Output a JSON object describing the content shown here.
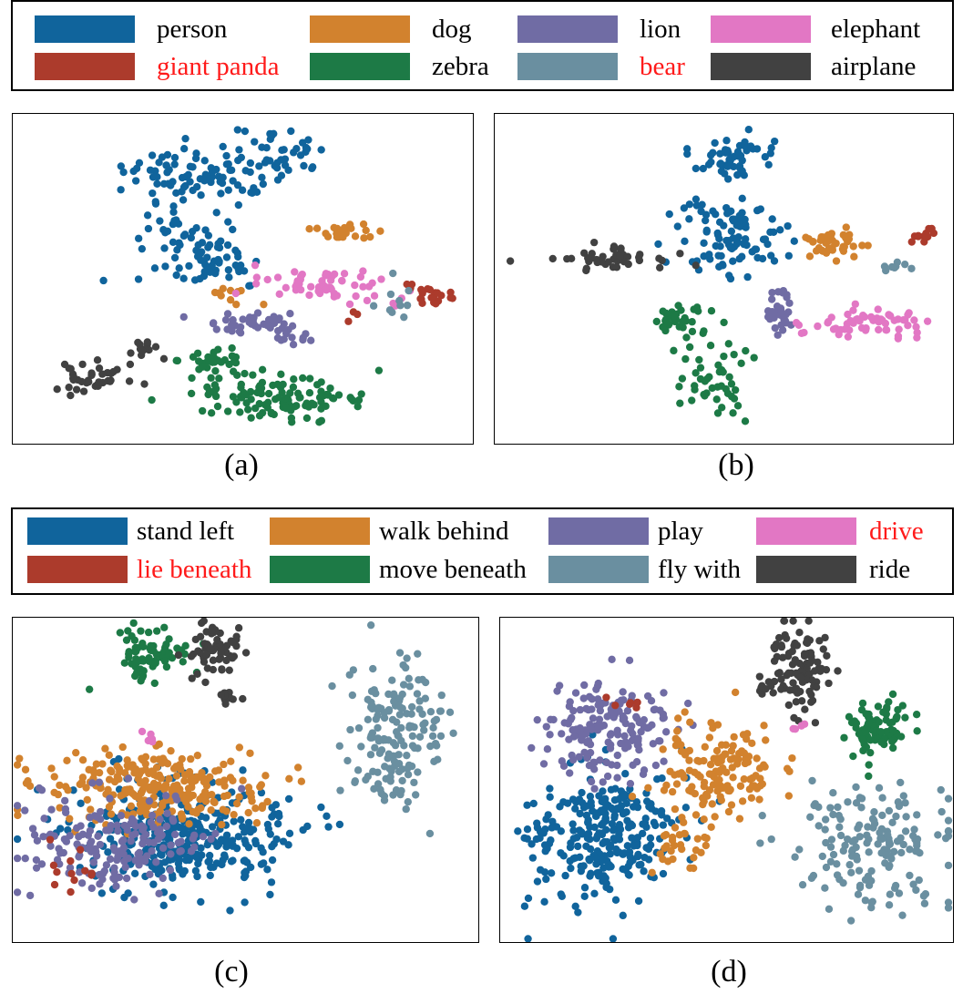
{
  "legends": [
    {
      "id": "legend-objects",
      "items": [
        {
          "label": "person",
          "color": "#10649c",
          "highlight": false
        },
        {
          "label": "giant panda",
          "color": "#ac3b2c",
          "highlight": true
        },
        {
          "label": "dog",
          "color": "#d2822e",
          "highlight": false
        },
        {
          "label": "zebra",
          "color": "#1d7a46",
          "highlight": false
        },
        {
          "label": "lion",
          "color": "#706ca4",
          "highlight": false
        },
        {
          "label": "bear",
          "color": "#6a8fa0",
          "highlight": true
        },
        {
          "label": "elephant",
          "color": "#e277c4",
          "highlight": false
        },
        {
          "label": "airplane",
          "color": "#414141",
          "highlight": false
        }
      ]
    },
    {
      "id": "legend-predicates",
      "items": [
        {
          "label": "stand left",
          "color": "#10649c",
          "highlight": false
        },
        {
          "label": "lie beneath",
          "color": "#ac3b2c",
          "highlight": true
        },
        {
          "label": "walk behind",
          "color": "#d2822e",
          "highlight": false
        },
        {
          "label": "move beneath",
          "color": "#1d7a46",
          "highlight": false
        },
        {
          "label": "play",
          "color": "#706ca4",
          "highlight": false
        },
        {
          "label": "fly with",
          "color": "#6a8fa0",
          "highlight": true
        },
        {
          "label": "drive",
          "color": "#e277c4",
          "highlight": true
        },
        {
          "label": "ride",
          "color": "#414141",
          "highlight": false
        }
      ]
    }
  ],
  "captions": {
    "a": "(a)",
    "b": "(b)",
    "c": "(c)",
    "d": "(d)"
  },
  "chart_data": [
    {
      "type": "scatter",
      "panel": "(a)",
      "legend": "legend-objects",
      "title": "",
      "xlabel": "",
      "ylabel": "",
      "axes_ticks": false,
      "grid": false,
      "xlim": [
        0,
        100
      ],
      "ylim": [
        0,
        100
      ],
      "clusters": [
        {
          "series": "person",
          "center": [
            40,
            18
          ],
          "spread": [
            10,
            5
          ],
          "n": 80
        },
        {
          "series": "person",
          "center": [
            58,
            12
          ],
          "spread": [
            6,
            6
          ],
          "n": 40
        },
        {
          "series": "person",
          "center": [
            42,
            45
          ],
          "spread": [
            8,
            6
          ],
          "n": 60
        },
        {
          "series": "person",
          "center": [
            36,
            34
          ],
          "spread": [
            6,
            4
          ],
          "n": 25
        },
        {
          "series": "dog",
          "center": [
            71,
            36
          ],
          "spread": [
            4,
            2
          ],
          "n": 25
        },
        {
          "series": "dog",
          "center": [
            48,
            55
          ],
          "spread": [
            4,
            2
          ],
          "n": 10
        },
        {
          "series": "zebra",
          "center": [
            58,
            86
          ],
          "spread": [
            12,
            4
          ],
          "n": 110
        },
        {
          "series": "zebra",
          "center": [
            44,
            75
          ],
          "spread": [
            5,
            3
          ],
          "n": 35
        },
        {
          "series": "lion",
          "center": [
            52,
            63
          ],
          "spread": [
            7,
            2
          ],
          "n": 40
        },
        {
          "series": "lion",
          "center": [
            60,
            67
          ],
          "spread": [
            4,
            1.5
          ],
          "n": 12
        },
        {
          "series": "elephant",
          "center": [
            69,
            52
          ],
          "spread": [
            9,
            3
          ],
          "n": 55
        },
        {
          "series": "elephant",
          "center": [
            84,
            58
          ],
          "spread": [
            1.5,
            1.5
          ],
          "n": 4
        },
        {
          "series": "giant panda",
          "center": [
            91,
            55
          ],
          "spread": [
            4,
            2
          ],
          "n": 22
        },
        {
          "series": "giant panda",
          "center": [
            74,
            62
          ],
          "spread": [
            1,
            1
          ],
          "n": 3
        },
        {
          "series": "bear",
          "center": [
            84,
            58
          ],
          "spread": [
            3,
            3
          ],
          "n": 10
        },
        {
          "series": "airplane",
          "center": [
            16,
            80
          ],
          "spread": [
            5,
            3
          ],
          "n": 40
        },
        {
          "series": "airplane",
          "center": [
            28,
            71
          ],
          "spread": [
            3,
            2
          ],
          "n": 12
        }
      ]
    },
    {
      "type": "scatter",
      "panel": "(b)",
      "legend": "legend-objects",
      "title": "",
      "xlabel": "",
      "ylabel": "",
      "axes_ticks": false,
      "grid": false,
      "xlim": [
        0,
        100
      ],
      "ylim": [
        0,
        100
      ],
      "clusters": [
        {
          "series": "person",
          "center": [
            52,
            12
          ],
          "spread": [
            6,
            5
          ],
          "n": 50
        },
        {
          "series": "person",
          "center": [
            52,
            38
          ],
          "spread": [
            7,
            8
          ],
          "n": 100
        },
        {
          "series": "dog",
          "center": [
            72,
            39
          ],
          "spread": [
            5,
            3
          ],
          "n": 40
        },
        {
          "series": "giant panda",
          "center": [
            93,
            37
          ],
          "spread": [
            2,
            1.5
          ],
          "n": 12
        },
        {
          "series": "bear",
          "center": [
            88,
            46
          ],
          "spread": [
            2,
            1
          ],
          "n": 8
        },
        {
          "series": "lion",
          "center": [
            62,
            60
          ],
          "spread": [
            1.5,
            5
          ],
          "n": 30
        },
        {
          "series": "elephant",
          "center": [
            82,
            63
          ],
          "spread": [
            9,
            3
          ],
          "n": 60
        },
        {
          "series": "zebra",
          "center": [
            40,
            62
          ],
          "spread": [
            4,
            3
          ],
          "n": 30
        },
        {
          "series": "zebra",
          "center": [
            48,
            80
          ],
          "spread": [
            5,
            8
          ],
          "n": 50
        },
        {
          "series": "airplane",
          "center": [
            25,
            44
          ],
          "spread": [
            9,
            2
          ],
          "n": 45
        }
      ]
    },
    {
      "type": "scatter",
      "panel": "(c)",
      "legend": "legend-predicates",
      "title": "",
      "xlabel": "",
      "ylabel": "",
      "axes_ticks": false,
      "grid": false,
      "xlim": [
        0,
        100
      ],
      "ylim": [
        0,
        100
      ],
      "clusters": [
        {
          "series": "stand left",
          "center": [
            37,
            67
          ],
          "spread": [
            14,
            10
          ],
          "n": 350
        },
        {
          "series": "walk behind",
          "center": [
            30,
            52
          ],
          "spread": [
            14,
            7
          ],
          "n": 260
        },
        {
          "series": "play",
          "center": [
            22,
            70
          ],
          "spread": [
            12,
            10
          ],
          "n": 170
        },
        {
          "series": "lie beneath",
          "center": [
            14,
            76
          ],
          "spread": [
            4,
            6
          ],
          "n": 12
        },
        {
          "series": "move beneath",
          "center": [
            30,
            12
          ],
          "spread": [
            5,
            6
          ],
          "n": 70
        },
        {
          "series": "ride",
          "center": [
            43,
            10
          ],
          "spread": [
            4,
            5
          ],
          "n": 65
        },
        {
          "series": "ride",
          "center": [
            46,
            25
          ],
          "spread": [
            2,
            1.5
          ],
          "n": 10
        },
        {
          "series": "drive",
          "center": [
            29,
            37
          ],
          "spread": [
            1,
            1
          ],
          "n": 6
        },
        {
          "series": "fly with",
          "center": [
            82,
            36
          ],
          "spread": [
            6,
            14
          ],
          "n": 160
        }
      ]
    },
    {
      "type": "scatter",
      "panel": "(d)",
      "legend": "legend-predicates",
      "title": "",
      "xlabel": "",
      "ylabel": "",
      "axes_ticks": false,
      "grid": false,
      "xlim": [
        0,
        100
      ],
      "ylim": [
        0,
        100
      ],
      "clusters": [
        {
          "series": "stand left",
          "center": [
            22,
            67
          ],
          "spread": [
            10,
            13
          ],
          "n": 280
        },
        {
          "series": "play",
          "center": [
            24,
            35
          ],
          "spread": [
            9,
            9
          ],
          "n": 170
        },
        {
          "series": "walk behind",
          "center": [
            48,
            48
          ],
          "spread": [
            8,
            10
          ],
          "n": 140
        },
        {
          "series": "walk behind",
          "center": [
            40,
            68
          ],
          "spread": [
            4,
            6
          ],
          "n": 30
        },
        {
          "series": "lie beneath",
          "center": [
            28,
            26
          ],
          "spread": [
            2,
            2
          ],
          "n": 6
        },
        {
          "series": "ride",
          "center": [
            67,
            15
          ],
          "spread": [
            4,
            8
          ],
          "n": 100
        },
        {
          "series": "ride",
          "center": [
            60,
            21
          ],
          "spread": [
            2,
            2
          ],
          "n": 12
        },
        {
          "series": "move beneath",
          "center": [
            83,
            33
          ],
          "spread": [
            5,
            6
          ],
          "n": 80
        },
        {
          "series": "drive",
          "center": [
            66,
            34
          ],
          "spread": [
            1,
            1
          ],
          "n": 4
        },
        {
          "series": "fly with",
          "center": [
            82,
            71
          ],
          "spread": [
            11,
            11
          ],
          "n": 160
        }
      ]
    }
  ]
}
